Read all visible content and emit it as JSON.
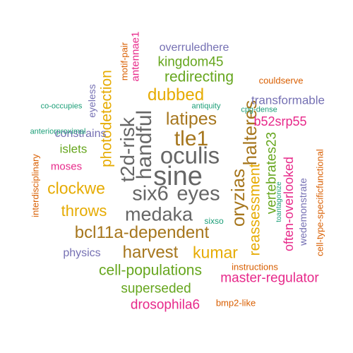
{
  "palette": {
    "gray": "#666666",
    "brown": "#a6761d",
    "gold": "#e6ab02",
    "green": "#66a61e",
    "magenta": "#e7298a",
    "purple": "#7570b3",
    "orange": "#d95f02",
    "teal": "#1b9e77"
  },
  "words": [
    {
      "text": "sine",
      "color": "gray"
    },
    {
      "text": "six6",
      "color": "gray"
    },
    {
      "text": "eyes",
      "color": "gray"
    },
    {
      "text": "oculis",
      "color": "gray"
    },
    {
      "text": "tle1",
      "color": "brown"
    },
    {
      "text": "medaka",
      "color": "gray"
    },
    {
      "text": "handful",
      "color": "gray"
    },
    {
      "text": "t2d-risk",
      "color": "gray"
    },
    {
      "text": "halteres",
      "color": "brown"
    },
    {
      "text": "oryzias",
      "color": "brown"
    },
    {
      "text": "latipes",
      "color": "brown"
    },
    {
      "text": "bcl11a-dependent",
      "color": "brown"
    },
    {
      "text": "harvest",
      "color": "brown"
    },
    {
      "text": "kumar",
      "color": "gold"
    },
    {
      "text": "clockwe",
      "color": "gold"
    },
    {
      "text": "throws",
      "color": "gold"
    },
    {
      "text": "photodetection",
      "color": "gold"
    },
    {
      "text": "dubbed",
      "color": "gold"
    },
    {
      "text": "reassessment",
      "color": "gold"
    },
    {
      "text": "vertebrates23",
      "color": "green"
    },
    {
      "text": "kingdom45",
      "color": "green"
    },
    {
      "text": "redirecting",
      "color": "green"
    },
    {
      "text": "cell-populations",
      "color": "green"
    },
    {
      "text": "superseded",
      "color": "green"
    },
    {
      "text": "islets",
      "color": "green"
    },
    {
      "text": "drosophila6",
      "color": "magenta"
    },
    {
      "text": "master-regulator",
      "color": "magenta"
    },
    {
      "text": "often-overlooked",
      "color": "magenta"
    },
    {
      "text": "b52srp55",
      "color": "magenta"
    },
    {
      "text": "moses",
      "color": "magenta"
    },
    {
      "text": "antennae1",
      "color": "magenta"
    },
    {
      "text": "motif-pair",
      "color": "orange"
    },
    {
      "text": "transformable",
      "color": "purple"
    },
    {
      "text": "overruledhere",
      "color": "purple"
    },
    {
      "text": "constrains",
      "color": "purple"
    },
    {
      "text": "physics",
      "color": "purple"
    },
    {
      "text": "eyeless",
      "color": "purple"
    },
    {
      "text": "wedemonstrate",
      "color": "purple"
    },
    {
      "text": "couldserve",
      "color": "orange"
    },
    {
      "text": "interdisciplinary",
      "color": "orange"
    },
    {
      "text": "instructions",
      "color": "orange"
    },
    {
      "text": "bmp2-like",
      "color": "orange"
    },
    {
      "text": "cell-type-specificfunctional",
      "color": "orange"
    },
    {
      "text": "co-occupies",
      "color": "teal"
    },
    {
      "text": "anteriorproximal",
      "color": "teal"
    },
    {
      "text": "antiquity",
      "color": "teal"
    },
    {
      "text": "cpg-dense",
      "color": "teal"
    },
    {
      "text": "toantagonize",
      "color": "teal"
    },
    {
      "text": "sixso",
      "color": "teal"
    }
  ]
}
